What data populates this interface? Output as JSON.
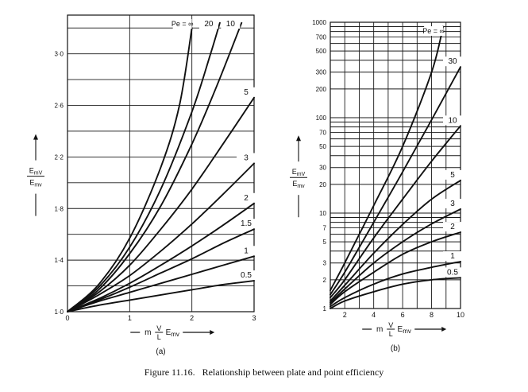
{
  "caption": {
    "label": "Figure 11.16.",
    "text": "Relationship between plate and point efficiency"
  },
  "colors": {
    "ink": "#111111",
    "grid": "#1a1a1a",
    "paper": "#ffffff"
  },
  "chart_data": [
    {
      "type": "line",
      "panel_label": "(a)",
      "ylabel_num": "E_mV",
      "ylabel_den": "E_mv",
      "xlabel": "m V/L E_mv",
      "xlim": [
        0,
        3
      ],
      "ylim": [
        1.0,
        3.3
      ],
      "xticks": [
        0,
        1,
        2,
        3
      ],
      "yticks": [
        1.0,
        1.4,
        1.8,
        2.2,
        2.6,
        3.0
      ],
      "ytick_labels": [
        "1·0",
        "1·4",
        "1·8",
        "2·2",
        "2·6",
        "3·0"
      ],
      "yscale": "linear",
      "grid": true,
      "series": [
        {
          "name": "0.5",
          "x": [
            0,
            0.5,
            1.0,
            1.5,
            2.0,
            2.5,
            3.0
          ],
          "y": [
            1.0,
            1.05,
            1.09,
            1.13,
            1.17,
            1.21,
            1.24
          ]
        },
        {
          "name": "1",
          "x": [
            0,
            0.5,
            1.0,
            1.5,
            2.0,
            2.5,
            3.0
          ],
          "y": [
            1.0,
            1.08,
            1.15,
            1.22,
            1.29,
            1.36,
            1.43
          ]
        },
        {
          "name": "1.5",
          "x": [
            0,
            0.5,
            1.0,
            1.5,
            2.0,
            2.5,
            3.0
          ],
          "y": [
            1.0,
            1.09,
            1.19,
            1.3,
            1.41,
            1.53,
            1.64
          ]
        },
        {
          "name": "2",
          "x": [
            0,
            0.5,
            1.0,
            1.5,
            2.0,
            2.5,
            3.0
          ],
          "y": [
            1.0,
            1.1,
            1.22,
            1.36,
            1.51,
            1.67,
            1.84
          ]
        },
        {
          "name": "3",
          "x": [
            0,
            0.5,
            1.0,
            1.5,
            2.0,
            2.5,
            3.0
          ],
          "y": [
            1.0,
            1.13,
            1.28,
            1.47,
            1.68,
            1.91,
            2.15
          ]
        },
        {
          "name": "5",
          "x": [
            0,
            0.5,
            1.0,
            1.5,
            2.0,
            2.5,
            3.0
          ],
          "y": [
            1.0,
            1.15,
            1.36,
            1.64,
            1.95,
            2.3,
            2.66
          ]
        },
        {
          "name": "10",
          "x": [
            0,
            0.5,
            1.0,
            1.5,
            2.0,
            2.4,
            2.8
          ],
          "y": [
            1.0,
            1.17,
            1.45,
            1.82,
            2.3,
            2.75,
            3.24
          ]
        },
        {
          "name": "20",
          "x": [
            0,
            0.5,
            1.0,
            1.5,
            2.0,
            2.3,
            2.45
          ],
          "y": [
            1.0,
            1.19,
            1.5,
            1.95,
            2.55,
            3.0,
            3.24
          ]
        },
        {
          "name": "Pe = ∞",
          "x": [
            0,
            0.5,
            1.0,
            1.5,
            1.8,
            2.0
          ],
          "y": [
            1.0,
            1.21,
            1.57,
            2.12,
            2.6,
            3.2
          ]
        }
      ]
    },
    {
      "type": "line",
      "panel_label": "(b)",
      "ylabel_num": "E_mV",
      "ylabel_den": "E_mv",
      "xlabel": "m V/L E_mv",
      "xlim": [
        1,
        10
      ],
      "ylim": [
        1,
        1000
      ],
      "xticks": [
        2,
        4,
        6,
        8,
        10
      ],
      "yticks": [
        1,
        2,
        3,
        5,
        7,
        10,
        20,
        30,
        50,
        70,
        100,
        200,
        300,
        500,
        700,
        1000
      ],
      "yscale": "log",
      "grid": true,
      "series": [
        {
          "name": "0.5",
          "x": [
            1,
            2,
            4,
            6,
            8,
            10
          ],
          "y": [
            1.0,
            1.2,
            1.5,
            1.8,
            2.0,
            2.1
          ]
        },
        {
          "name": "1",
          "x": [
            1,
            2,
            4,
            6,
            8,
            10
          ],
          "y": [
            1.05,
            1.3,
            1.8,
            2.3,
            2.7,
            3.1
          ]
        },
        {
          "name": "2",
          "x": [
            1,
            2,
            4,
            6,
            8,
            10
          ],
          "y": [
            1.1,
            1.5,
            2.4,
            3.7,
            5.0,
            6.3
          ]
        },
        {
          "name": "3",
          "x": [
            1,
            2,
            4,
            6,
            8,
            10
          ],
          "y": [
            1.15,
            1.6,
            3.0,
            5.0,
            7.7,
            11
          ]
        },
        {
          "name": "5",
          "x": [
            1,
            2,
            4,
            6,
            8,
            10
          ],
          "y": [
            1.2,
            1.75,
            3.8,
            7.6,
            14,
            22
          ]
        },
        {
          "name": "10",
          "x": [
            1,
            2,
            4,
            6,
            8,
            10
          ],
          "y": [
            1.3,
            2.0,
            5.5,
            14,
            35,
            82
          ]
        },
        {
          "name": "30",
          "x": [
            1,
            2,
            4,
            6,
            8,
            10
          ],
          "y": [
            1.4,
            2.4,
            8.0,
            27,
            95,
            340
          ]
        },
        {
          "name": "Pe = ∞",
          "x": [
            1,
            2,
            4,
            6,
            8,
            8.8
          ],
          "y": [
            1.55,
            3.0,
            12,
            50,
            300,
            900
          ]
        }
      ]
    }
  ]
}
